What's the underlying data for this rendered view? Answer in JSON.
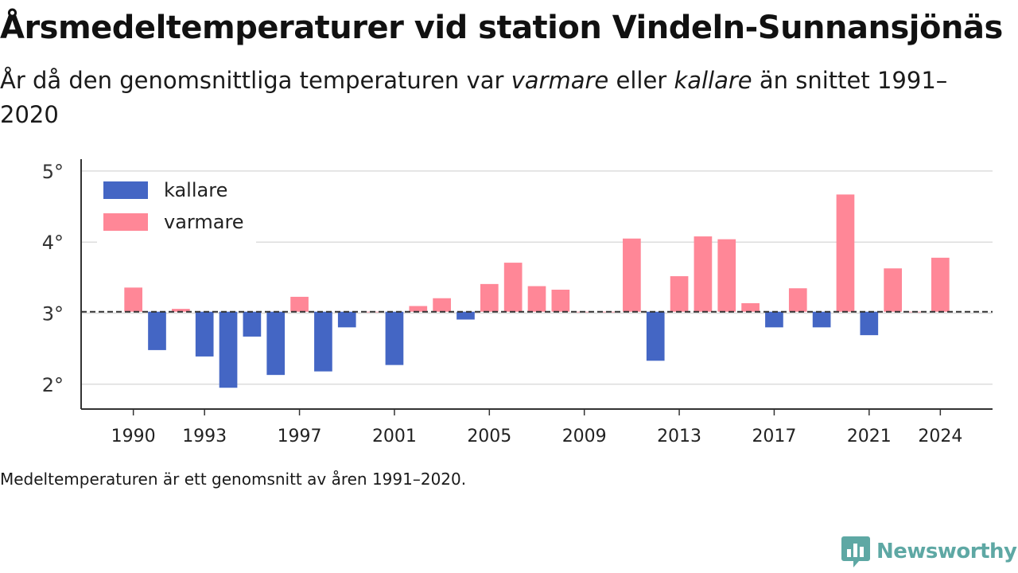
{
  "title": "Årsmedeltemperaturer vid station Vindeln-Sunnansjönäs",
  "subtitle": {
    "part1": "År då den genomsnittliga temperaturen var ",
    "warm_word": "varmare",
    "part2": " eller ",
    "cold_word": "kallare",
    "part3": " än snittet 1991–2020"
  },
  "note": "Medeltemperaturen är ett genomsnitt av åren 1991–2020.",
  "brand": {
    "name": "Newsworthy",
    "color": "#5ea8a4"
  },
  "colors": {
    "cold": "#4466c4",
    "warm": "#ff8797",
    "baseline": "#333333",
    "grid": "#dddddd"
  },
  "chart_data": {
    "type": "bar",
    "baseline": 3.02,
    "ylim": [
      1.65,
      5.1
    ],
    "xlim": [
      1987.8,
      2026.2
    ],
    "yticks": [
      2,
      3,
      4,
      5
    ],
    "ytick_labels": [
      "2°",
      "3°",
      "4°",
      "5°"
    ],
    "xticks": [
      1990,
      1993,
      1997,
      2001,
      2005,
      2009,
      2013,
      2017,
      2021,
      2024
    ],
    "xtick_labels": [
      "1990",
      "1993",
      "1997",
      "2001",
      "2005",
      "2009",
      "2013",
      "2017",
      "2021",
      "2024"
    ],
    "legend": {
      "position": "top-left",
      "items": [
        {
          "label": "kallare",
          "color": "#4466c4"
        },
        {
          "label": "varmare",
          "color": "#ff8797"
        }
      ]
    },
    "series": [
      {
        "x": 1990,
        "value": 3.36
      },
      {
        "x": 1991,
        "value": 2.48
      },
      {
        "x": 1992,
        "value": 3.06
      },
      {
        "x": 1993,
        "value": 2.39
      },
      {
        "x": 1994,
        "value": 1.95
      },
      {
        "x": 1995,
        "value": 2.67
      },
      {
        "x": 1996,
        "value": 2.13
      },
      {
        "x": 1997,
        "value": 3.23
      },
      {
        "x": 1998,
        "value": 2.18
      },
      {
        "x": 1999,
        "value": 2.8
      },
      {
        "x": 2000,
        "value": 3.02
      },
      {
        "x": 2001,
        "value": 2.27
      },
      {
        "x": 2002,
        "value": 3.1
      },
      {
        "x": 2003,
        "value": 3.21
      },
      {
        "x": 2004,
        "value": 2.91
      },
      {
        "x": 2005,
        "value": 3.41
      },
      {
        "x": 2006,
        "value": 3.71
      },
      {
        "x": 2007,
        "value": 3.38
      },
      {
        "x": 2008,
        "value": 3.33
      },
      {
        "x": 2009,
        "value": 3.02
      },
      {
        "x": 2010,
        "value": 3.02
      },
      {
        "x": 2011,
        "value": 4.05
      },
      {
        "x": 2012,
        "value": 2.33
      },
      {
        "x": 2013,
        "value": 3.52
      },
      {
        "x": 2014,
        "value": 4.08
      },
      {
        "x": 2015,
        "value": 4.04
      },
      {
        "x": 2016,
        "value": 3.14
      },
      {
        "x": 2017,
        "value": 2.8
      },
      {
        "x": 2018,
        "value": 3.35
      },
      {
        "x": 2019,
        "value": 2.8
      },
      {
        "x": 2020,
        "value": 4.67
      },
      {
        "x": 2021,
        "value": 2.69
      },
      {
        "x": 2022,
        "value": 3.63
      },
      {
        "x": 2023,
        "value": 3.02
      },
      {
        "x": 2024,
        "value": 3.78
      }
    ]
  }
}
